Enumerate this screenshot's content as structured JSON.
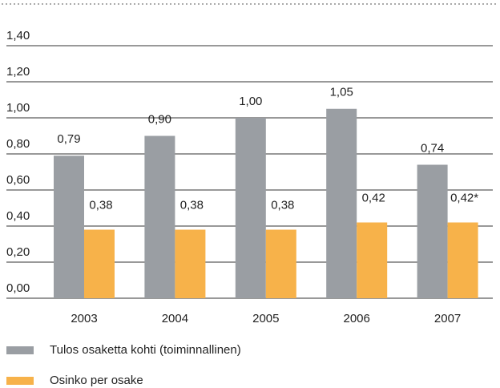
{
  "chart_data": {
    "type": "bar",
    "categories": [
      "2003",
      "2004",
      "2005",
      "2006",
      "2007"
    ],
    "series": [
      {
        "name": "Tulos osaketta kohti (toiminnallinen)",
        "color": "#9a9ea3",
        "values": [
          0.79,
          0.9,
          1.0,
          1.05,
          0.74
        ],
        "value_labels": [
          "0,79",
          "0,90",
          "1,00",
          "1,05",
          "0,74"
        ]
      },
      {
        "name": "Osinko per osake",
        "color": "#f7b24a",
        "values": [
          0.38,
          0.38,
          0.38,
          0.42,
          0.42
        ],
        "value_labels": [
          "0,38",
          "0,38",
          "0,38",
          "0,42",
          "0,42*"
        ]
      }
    ],
    "ylim": [
      0,
      1.4
    ],
    "yticks": [
      {
        "value": 0,
        "label": "0,00"
      },
      {
        "value": 0.2,
        "label": "0,20"
      },
      {
        "value": 0.4,
        "label": "0,40"
      },
      {
        "value": 0.6,
        "label": "0,60"
      },
      {
        "value": 0.8,
        "label": "0,80"
      },
      {
        "value": 1.0,
        "label": "1,00"
      },
      {
        "value": 1.2,
        "label": "1,20"
      },
      {
        "value": 1.4,
        "label": "1,40"
      }
    ],
    "grid": true
  }
}
